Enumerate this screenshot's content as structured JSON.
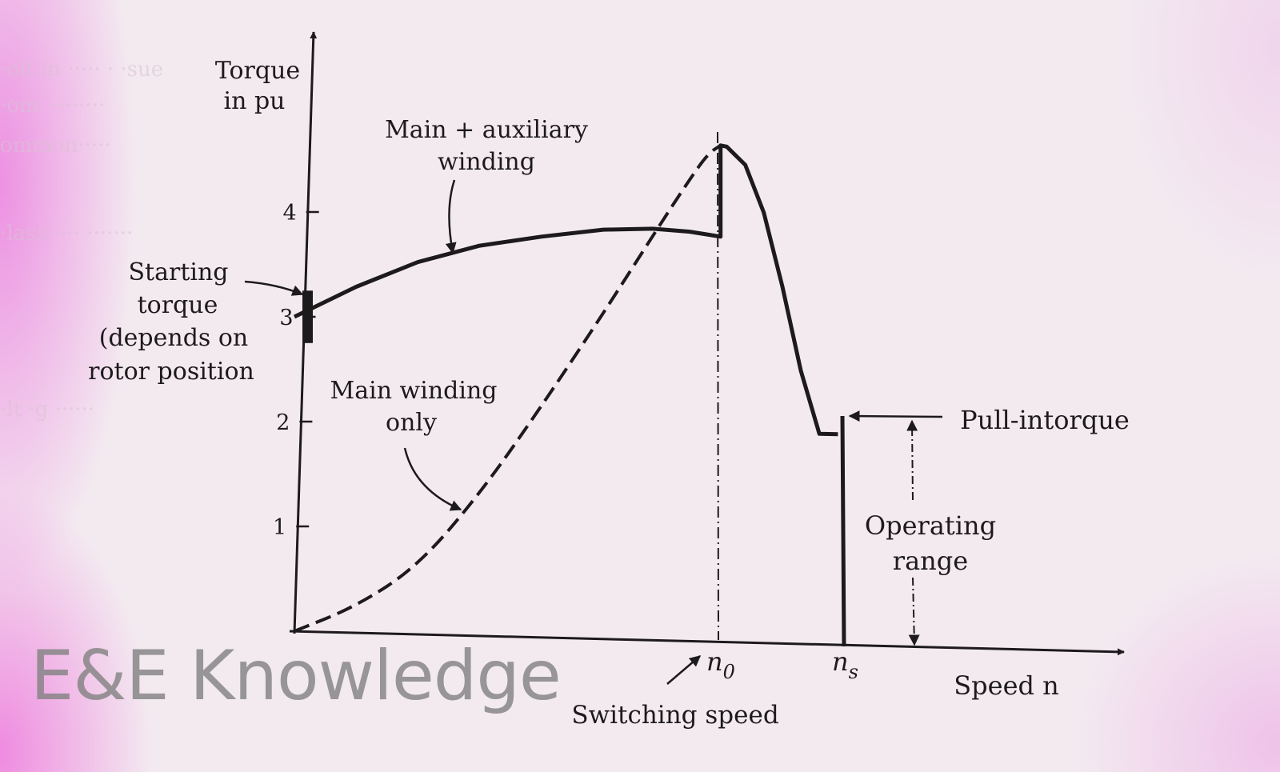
{
  "chart_data": {
    "type": "line",
    "title": "",
    "ylabel": "Torque in pu",
    "xlabel": "Speed n",
    "ylim": [
      0,
      5
    ],
    "y_ticks": [
      1,
      2,
      3,
      4
    ],
    "x_marks": [
      {
        "symbol": "n",
        "subscript": "0",
        "x": 0.69
      },
      {
        "symbol": "n",
        "subscript": "s",
        "x": 0.92
      }
    ],
    "series": [
      {
        "name": "Main + auxiliary winding",
        "style": "solid",
        "x": [
          0.0,
          0.1,
          0.2,
          0.3,
          0.4,
          0.5,
          0.58,
          0.64,
          0.69,
          0.69,
          0.7,
          0.73,
          0.76,
          0.79,
          0.82,
          0.85,
          0.88
        ],
        "y": [
          3.0,
          3.3,
          3.55,
          3.72,
          3.82,
          3.9,
          3.92,
          3.9,
          3.86,
          4.73,
          4.72,
          4.55,
          4.1,
          3.4,
          2.6,
          2.0,
          2.0
        ]
      },
      {
        "name": "Main winding only",
        "style": "dashed",
        "x": [
          0.0,
          0.1,
          0.2,
          0.3,
          0.4,
          0.5,
          0.58,
          0.64,
          0.67,
          0.69
        ],
        "y": [
          0.0,
          0.25,
          0.65,
          1.35,
          2.2,
          3.1,
          3.85,
          4.4,
          4.65,
          4.73
        ]
      }
    ],
    "starting_torque_range": [
      2.75,
      3.25
    ],
    "pull_in_torque": 2.0,
    "operating_range_speed": [
      0.92,
      1.0
    ]
  },
  "axes": {
    "y_title_line1": "Torque",
    "y_title_line2": "in pu",
    "x_title": "Speed n",
    "x_mark_n0": "n0",
    "x_mark_ns": "ns"
  },
  "annotations": {
    "main_aux_line1": "Main + auxiliary",
    "main_aux_line2": "winding",
    "main_only_line1": "Main winding",
    "main_only_line2": "only",
    "starting_line1": "Starting",
    "starting_line2": "torque",
    "starting_line3": "(depends on",
    "starting_line4": "rotor position",
    "pull_in": "Pull-intorque",
    "operating_line1": "Operating",
    "operating_line2": "range",
    "switching": "Switching speed"
  },
  "watermark": "E&E Knowledge",
  "colors": {
    "ink": "#1d1a1c",
    "paper": "#f3eaf0",
    "tint": "#e846d7",
    "watermark": "#828282"
  }
}
